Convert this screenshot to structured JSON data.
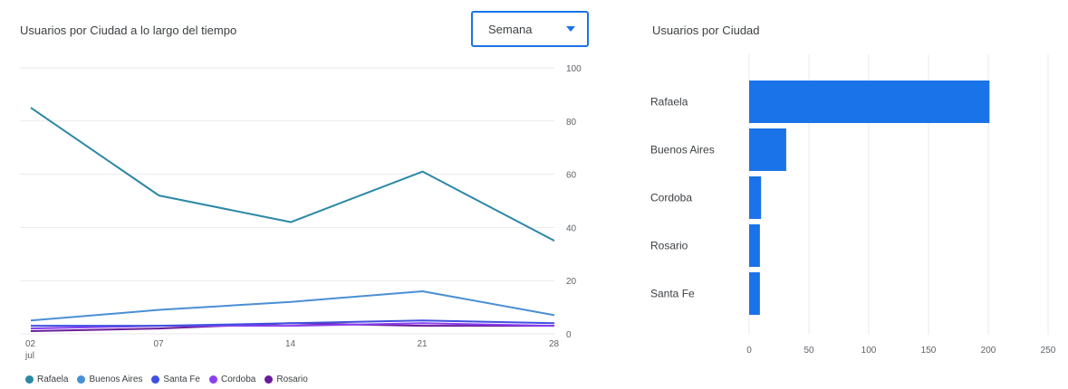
{
  "line_chart": {
    "title": "Usuarios por Ciudad a lo largo del tiempo",
    "dropdown": {
      "selected": "Semana"
    }
  },
  "bar_chart": {
    "title": "Usuarios por Ciudad"
  },
  "chart_data": [
    {
      "type": "line",
      "title": "Usuarios por Ciudad a lo largo del tiempo",
      "x": [
        "02",
        "07",
        "14",
        "21",
        "28"
      ],
      "x_sublabel": "jul",
      "ylim": [
        0,
        100
      ],
      "yticks": [
        0,
        20,
        40,
        60,
        80,
        100
      ],
      "y_axis_side": "right",
      "grid": true,
      "legend": "bottom",
      "series": [
        {
          "name": "Rafaela",
          "color": "#2b87a6",
          "values": [
            85,
            52,
            42,
            61,
            35
          ]
        },
        {
          "name": "Buenos Aires",
          "color": "#4a8fd4",
          "values": [
            5,
            9,
            12,
            16,
            7
          ]
        },
        {
          "name": "Santa Fe",
          "color": "#3f51e0",
          "values": [
            3,
            3,
            4,
            5,
            4
          ]
        },
        {
          "name": "Cordoba",
          "color": "#8a3ff0",
          "values": [
            2,
            3,
            3,
            4,
            3
          ]
        },
        {
          "name": "Rosario",
          "color": "#6a1b9a",
          "values": [
            1,
            2,
            4,
            3,
            3
          ]
        }
      ]
    },
    {
      "type": "bar",
      "orientation": "horizontal",
      "title": "Usuarios por Ciudad",
      "categories": [
        "Rafaela",
        "Buenos Aires",
        "Cordoba",
        "Rosario",
        "Santa Fe"
      ],
      "values": [
        201,
        31,
        10,
        9,
        9
      ],
      "xlim": [
        0,
        250
      ],
      "xticks": [
        0,
        50,
        100,
        150,
        200,
        250
      ],
      "grid": true,
      "color": "#1a73e8"
    }
  ]
}
